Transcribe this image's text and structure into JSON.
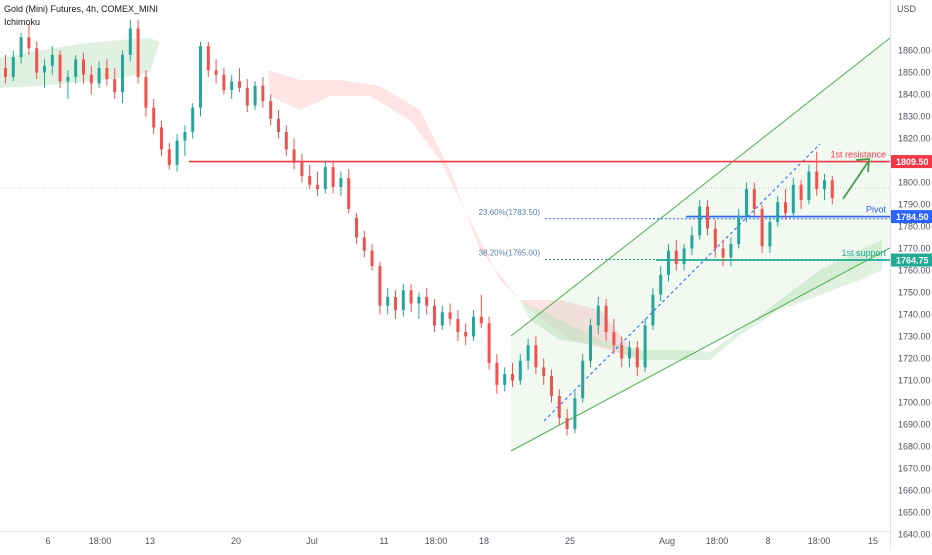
{
  "header": {
    "title": "Gold (Mini) Futures, 4h, COMEX_MINI",
    "indicator": "Ichimoku"
  },
  "chart_data": {
    "type": "candlestick",
    "currency": "USD",
    "ylim": [
      1640,
      1875
    ],
    "y_ticks": [
      1640,
      1650,
      1660,
      1670,
      1680,
      1690,
      1700,
      1710,
      1720,
      1730,
      1740,
      1750,
      1760,
      1770,
      1780,
      1790,
      1800,
      1810,
      1820,
      1830,
      1840,
      1850,
      1860
    ],
    "x_ticks": [
      "6",
      "18:00",
      "13",
      "20",
      "Jul",
      "11",
      "18:00",
      "18",
      "25",
      "Aug",
      "18:00",
      "8",
      "18:00",
      "15"
    ],
    "series": [
      {
        "name": "OHLC",
        "candles": [
          {
            "o": 1852,
            "h": 1858,
            "l": 1845,
            "c": 1848
          },
          {
            "o": 1848,
            "h": 1860,
            "l": 1846,
            "c": 1857
          },
          {
            "o": 1857,
            "h": 1868,
            "l": 1854,
            "c": 1866
          },
          {
            "o": 1866,
            "h": 1872,
            "l": 1858,
            "c": 1861
          },
          {
            "o": 1861,
            "h": 1864,
            "l": 1847,
            "c": 1850
          },
          {
            "o": 1850,
            "h": 1856,
            "l": 1843,
            "c": 1853
          },
          {
            "o": 1853,
            "h": 1862,
            "l": 1849,
            "c": 1858
          },
          {
            "o": 1858,
            "h": 1860,
            "l": 1843,
            "c": 1846
          },
          {
            "o": 1846,
            "h": 1851,
            "l": 1838,
            "c": 1848
          },
          {
            "o": 1848,
            "h": 1858,
            "l": 1845,
            "c": 1856
          },
          {
            "o": 1856,
            "h": 1859,
            "l": 1845,
            "c": 1849
          },
          {
            "o": 1849,
            "h": 1853,
            "l": 1840,
            "c": 1845
          },
          {
            "o": 1845,
            "h": 1855,
            "l": 1843,
            "c": 1852
          },
          {
            "o": 1852,
            "h": 1856,
            "l": 1844,
            "c": 1847
          },
          {
            "o": 1847,
            "h": 1852,
            "l": 1838,
            "c": 1841
          },
          {
            "o": 1841,
            "h": 1860,
            "l": 1836,
            "c": 1858
          },
          {
            "o": 1858,
            "h": 1874,
            "l": 1855,
            "c": 1870
          },
          {
            "o": 1870,
            "h": 1874,
            "l": 1845,
            "c": 1848
          },
          {
            "o": 1848,
            "h": 1851,
            "l": 1830,
            "c": 1834
          },
          {
            "o": 1834,
            "h": 1838,
            "l": 1822,
            "c": 1825
          },
          {
            "o": 1825,
            "h": 1828,
            "l": 1812,
            "c": 1815
          },
          {
            "o": 1815,
            "h": 1818,
            "l": 1806,
            "c": 1808
          },
          {
            "o": 1808,
            "h": 1822,
            "l": 1805,
            "c": 1819
          },
          {
            "o": 1819,
            "h": 1826,
            "l": 1812,
            "c": 1823
          },
          {
            "o": 1823,
            "h": 1836,
            "l": 1820,
            "c": 1834
          },
          {
            "o": 1834,
            "h": 1864,
            "l": 1830,
            "c": 1862
          },
          {
            "o": 1862,
            "h": 1864,
            "l": 1848,
            "c": 1851
          },
          {
            "o": 1851,
            "h": 1856,
            "l": 1845,
            "c": 1849
          },
          {
            "o": 1849,
            "h": 1852,
            "l": 1840,
            "c": 1842
          },
          {
            "o": 1842,
            "h": 1849,
            "l": 1838,
            "c": 1846
          },
          {
            "o": 1846,
            "h": 1852,
            "l": 1841,
            "c": 1843
          },
          {
            "o": 1843,
            "h": 1847,
            "l": 1832,
            "c": 1835
          },
          {
            "o": 1835,
            "h": 1846,
            "l": 1833,
            "c": 1844
          },
          {
            "o": 1844,
            "h": 1848,
            "l": 1834,
            "c": 1837
          },
          {
            "o": 1837,
            "h": 1840,
            "l": 1826,
            "c": 1829
          },
          {
            "o": 1829,
            "h": 1833,
            "l": 1820,
            "c": 1823
          },
          {
            "o": 1823,
            "h": 1826,
            "l": 1812,
            "c": 1815
          },
          {
            "o": 1815,
            "h": 1820,
            "l": 1806,
            "c": 1809
          },
          {
            "o": 1809,
            "h": 1813,
            "l": 1800,
            "c": 1803
          },
          {
            "o": 1803,
            "h": 1808,
            "l": 1797,
            "c": 1799
          },
          {
            "o": 1799,
            "h": 1805,
            "l": 1794,
            "c": 1797
          },
          {
            "o": 1797,
            "h": 1810,
            "l": 1795,
            "c": 1807
          },
          {
            "o": 1807,
            "h": 1810,
            "l": 1795,
            "c": 1798
          },
          {
            "o": 1798,
            "h": 1805,
            "l": 1794,
            "c": 1802
          },
          {
            "o": 1802,
            "h": 1806,
            "l": 1786,
            "c": 1788
          },
          {
            "o": 1784,
            "h": 1786,
            "l": 1772,
            "c": 1775
          },
          {
            "o": 1775,
            "h": 1778,
            "l": 1766,
            "c": 1769
          },
          {
            "o": 1769,
            "h": 1772,
            "l": 1760,
            "c": 1762
          },
          {
            "o": 1762,
            "h": 1764,
            "l": 1740,
            "c": 1744
          },
          {
            "o": 1744,
            "h": 1752,
            "l": 1740,
            "c": 1748
          },
          {
            "o": 1748,
            "h": 1751,
            "l": 1738,
            "c": 1742
          },
          {
            "o": 1742,
            "h": 1754,
            "l": 1739,
            "c": 1751
          },
          {
            "o": 1751,
            "h": 1754,
            "l": 1741,
            "c": 1745
          },
          {
            "o": 1745,
            "h": 1750,
            "l": 1738,
            "c": 1748
          },
          {
            "o": 1748,
            "h": 1752,
            "l": 1740,
            "c": 1744
          },
          {
            "o": 1744,
            "h": 1747,
            "l": 1732,
            "c": 1735
          },
          {
            "o": 1735,
            "h": 1744,
            "l": 1733,
            "c": 1741
          },
          {
            "o": 1741,
            "h": 1745,
            "l": 1735,
            "c": 1738
          },
          {
            "o": 1738,
            "h": 1742,
            "l": 1728,
            "c": 1732
          },
          {
            "o": 1732,
            "h": 1736,
            "l": 1726,
            "c": 1730
          },
          {
            "o": 1730,
            "h": 1742,
            "l": 1728,
            "c": 1739
          },
          {
            "o": 1739,
            "h": 1749,
            "l": 1734,
            "c": 1736
          },
          {
            "o": 1736,
            "h": 1739,
            "l": 1715,
            "c": 1718
          },
          {
            "o": 1718,
            "h": 1722,
            "l": 1704,
            "c": 1708
          },
          {
            "o": 1708,
            "h": 1716,
            "l": 1705,
            "c": 1713
          },
          {
            "o": 1713,
            "h": 1718,
            "l": 1707,
            "c": 1710
          },
          {
            "o": 1710,
            "h": 1722,
            "l": 1708,
            "c": 1719
          },
          {
            "o": 1719,
            "h": 1729,
            "l": 1715,
            "c": 1726
          },
          {
            "o": 1726,
            "h": 1730,
            "l": 1713,
            "c": 1716
          },
          {
            "o": 1716,
            "h": 1720,
            "l": 1708,
            "c": 1712
          },
          {
            "o": 1712,
            "h": 1715,
            "l": 1700,
            "c": 1703
          },
          {
            "o": 1703,
            "h": 1706,
            "l": 1690,
            "c": 1693
          },
          {
            "o": 1693,
            "h": 1697,
            "l": 1685,
            "c": 1688
          },
          {
            "o": 1688,
            "h": 1705,
            "l": 1686,
            "c": 1702
          },
          {
            "o": 1702,
            "h": 1722,
            "l": 1700,
            "c": 1719
          },
          {
            "o": 1719,
            "h": 1738,
            "l": 1716,
            "c": 1735
          },
          {
            "o": 1735,
            "h": 1748,
            "l": 1731,
            "c": 1744
          },
          {
            "o": 1744,
            "h": 1747,
            "l": 1728,
            "c": 1732
          },
          {
            "o": 1732,
            "h": 1738,
            "l": 1722,
            "c": 1726
          },
          {
            "o": 1726,
            "h": 1730,
            "l": 1716,
            "c": 1720
          },
          {
            "o": 1720,
            "h": 1728,
            "l": 1716,
            "c": 1725
          },
          {
            "o": 1725,
            "h": 1728,
            "l": 1712,
            "c": 1716
          },
          {
            "o": 1716,
            "h": 1738,
            "l": 1714,
            "c": 1735
          },
          {
            "o": 1735,
            "h": 1752,
            "l": 1733,
            "c": 1749
          },
          {
            "o": 1749,
            "h": 1762,
            "l": 1746,
            "c": 1758
          },
          {
            "o": 1758,
            "h": 1772,
            "l": 1755,
            "c": 1769
          },
          {
            "o": 1769,
            "h": 1774,
            "l": 1760,
            "c": 1763
          },
          {
            "o": 1763,
            "h": 1772,
            "l": 1760,
            "c": 1770
          },
          {
            "o": 1770,
            "h": 1780,
            "l": 1767,
            "c": 1776
          },
          {
            "o": 1776,
            "h": 1792,
            "l": 1774,
            "c": 1789
          },
          {
            "o": 1789,
            "h": 1792,
            "l": 1776,
            "c": 1779
          },
          {
            "o": 1779,
            "h": 1783,
            "l": 1766,
            "c": 1770
          },
          {
            "o": 1770,
            "h": 1774,
            "l": 1762,
            "c": 1766
          },
          {
            "o": 1766,
            "h": 1775,
            "l": 1762,
            "c": 1772
          },
          {
            "o": 1772,
            "h": 1788,
            "l": 1770,
            "c": 1785
          },
          {
            "o": 1785,
            "h": 1800,
            "l": 1782,
            "c": 1797
          },
          {
            "o": 1797,
            "h": 1800,
            "l": 1785,
            "c": 1788
          },
          {
            "o": 1788,
            "h": 1790,
            "l": 1768,
            "c": 1771
          },
          {
            "o": 1771,
            "h": 1785,
            "l": 1768,
            "c": 1782
          },
          {
            "o": 1782,
            "h": 1794,
            "l": 1780,
            "c": 1791
          },
          {
            "o": 1791,
            "h": 1797,
            "l": 1783,
            "c": 1786
          },
          {
            "o": 1786,
            "h": 1802,
            "l": 1784,
            "c": 1799
          },
          {
            "o": 1799,
            "h": 1801,
            "l": 1788,
            "c": 1792
          },
          {
            "o": 1792,
            "h": 1808,
            "l": 1790,
            "c": 1805
          },
          {
            "o": 1805,
            "h": 1814,
            "l": 1794,
            "c": 1797
          },
          {
            "o": 1797,
            "h": 1804,
            "l": 1792,
            "c": 1801
          },
          {
            "o": 1801,
            "h": 1803,
            "l": 1790,
            "c": 1793
          }
        ]
      }
    ],
    "levels": [
      {
        "name": "1st resistance",
        "value": 1809.5,
        "badge": "1809.50",
        "color": "#f23645"
      },
      {
        "name": "Pivot",
        "value": 1784.5,
        "badge": "1784.50",
        "color": "#2962ff"
      },
      {
        "name": "1st support",
        "value": 1764.75,
        "badge": "1764.75",
        "color": "#22ab94"
      }
    ],
    "fib_levels": [
      {
        "label": "23.60%(1783.50)",
        "value": 1783.5
      },
      {
        "label": "38.20%(1765.00)",
        "value": 1765.0
      }
    ],
    "colors": {
      "up": "#26a69a",
      "down": "#ef5350",
      "resistance": "#f23645",
      "pivot": "#2962ff",
      "support": "#22ab94",
      "channel": "#4caf50",
      "cloud_bull": "#c8e6c9",
      "cloud_bear": "#ffcdd2",
      "arrow": "#43a047"
    }
  }
}
